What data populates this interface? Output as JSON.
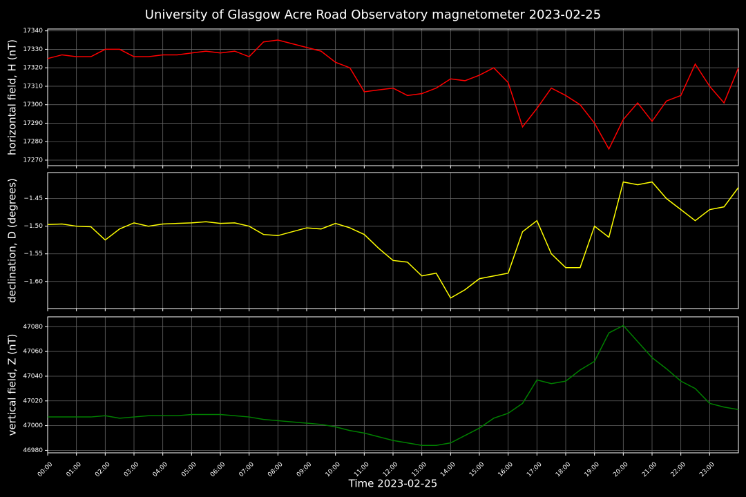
{
  "title": "University of Glasgow Acre Road Observatory magnetometer 2023-02-25",
  "chart_data": [
    {
      "type": "line",
      "ylabel": "horizontal field, H (nT)",
      "color": "#ff0000",
      "grid": true,
      "ylim": [
        17267,
        17341
      ],
      "yticks": [
        17270,
        17280,
        17290,
        17300,
        17310,
        17320,
        17330,
        17340
      ],
      "values": [
        17325,
        17327,
        17326,
        17326,
        17330,
        17330,
        17326,
        17326,
        17327,
        17327,
        17328,
        17329,
        17328,
        17329,
        17326,
        17334,
        17335,
        17333,
        17331,
        17329,
        17323,
        17320,
        17307,
        17308,
        17309,
        17305,
        17306,
        17309,
        17314,
        17313,
        17316,
        17320,
        17312,
        17288,
        17298,
        17309,
        17305,
        17300,
        17290,
        17276,
        17292,
        17301,
        17291,
        17302,
        17305,
        17322,
        17310,
        17301,
        17320
      ]
    },
    {
      "type": "line",
      "ylabel": "declination, D (degrees)",
      "color": "#ffff00",
      "grid": true,
      "ylim": [
        -1.649,
        -1.403
      ],
      "yticks": [
        {
          "value": -1.6,
          "label": "−1.60"
        },
        {
          "value": -1.55,
          "label": "−1.55"
        },
        {
          "value": -1.5,
          "label": "−1.50"
        },
        {
          "value": -1.45,
          "label": "−1.45"
        }
      ],
      "values": [
        -1.497,
        -1.496,
        -1.5,
        -1.501,
        -1.525,
        -1.505,
        -1.494,
        -1.5,
        -1.496,
        -1.495,
        -1.494,
        -1.492,
        -1.495,
        -1.494,
        -1.5,
        -1.515,
        -1.517,
        -1.51,
        -1.503,
        -1.505,
        -1.495,
        -1.503,
        -1.515,
        -1.54,
        -1.562,
        -1.565,
        -1.59,
        -1.585,
        -1.63,
        -1.615,
        -1.595,
        -1.59,
        -1.585,
        -1.51,
        -1.49,
        -1.55,
        -1.575,
        -1.575,
        -1.5,
        -1.52,
        -1.42,
        -1.425,
        -1.42,
        -1.45,
        -1.47,
        -1.49,
        -1.47,
        -1.465,
        -1.43
      ]
    },
    {
      "type": "line",
      "ylabel": "vertical field, Z (nT)",
      "xlabel": "Time 2023-02-25",
      "color": "#008000",
      "grid": true,
      "ylim": [
        46978,
        47088
      ],
      "yticks": [
        46980,
        47000,
        47020,
        47040,
        47060,
        47080
      ],
      "xlim": [
        0,
        24
      ],
      "xticks": [
        {
          "value": 0,
          "label": "00:00"
        },
        {
          "value": 1,
          "label": "01:00"
        },
        {
          "value": 2,
          "label": "02:00"
        },
        {
          "value": 3,
          "label": "03:00"
        },
        {
          "value": 4,
          "label": "04:00"
        },
        {
          "value": 5,
          "label": "05:00"
        },
        {
          "value": 6,
          "label": "06:00"
        },
        {
          "value": 7,
          "label": "07:00"
        },
        {
          "value": 8,
          "label": "08:00"
        },
        {
          "value": 9,
          "label": "09:00"
        },
        {
          "value": 10,
          "label": "10:00"
        },
        {
          "value": 11,
          "label": "11:00"
        },
        {
          "value": 12,
          "label": "12:00"
        },
        {
          "value": 13,
          "label": "13:00"
        },
        {
          "value": 14,
          "label": "14:00"
        },
        {
          "value": 15,
          "label": "15:00"
        },
        {
          "value": 16,
          "label": "16:00"
        },
        {
          "value": 17,
          "label": "17:00"
        },
        {
          "value": 18,
          "label": "18:00"
        },
        {
          "value": 19,
          "label": "19:00"
        },
        {
          "value": 20,
          "label": "20:00"
        },
        {
          "value": 21,
          "label": "21:00"
        },
        {
          "value": 22,
          "label": "22:00"
        },
        {
          "value": 23,
          "label": "23:00"
        }
      ],
      "x": [
        0,
        0.5,
        1,
        1.5,
        2,
        2.5,
        3,
        3.5,
        4,
        4.5,
        5,
        5.5,
        6,
        6.5,
        7,
        7.5,
        8,
        8.5,
        9,
        9.5,
        10,
        10.5,
        11,
        11.5,
        12,
        12.5,
        13,
        13.5,
        14,
        14.5,
        15,
        15.5,
        16,
        16.5,
        17,
        17.5,
        18,
        18.5,
        19,
        19.5,
        20,
        20.5,
        21,
        21.5,
        22,
        22.5,
        23,
        23.5,
        24
      ],
      "values": [
        47007,
        47007,
        47007,
        47007,
        47008,
        47006,
        47007,
        47008,
        47008,
        47008,
        47009,
        47009,
        47009,
        47008,
        47007,
        47005,
        47004,
        47003,
        47002,
        47001,
        46999,
        46996,
        46994,
        46991,
        46988,
        46986,
        46984,
        46984,
        46986,
        46992,
        46998,
        47006,
        47010,
        47018,
        47037,
        47034,
        47036,
        47045,
        47052,
        47075,
        47081,
        47068,
        47055,
        47046,
        47036,
        47030,
        47018,
        47015,
        47013
      ]
    }
  ]
}
